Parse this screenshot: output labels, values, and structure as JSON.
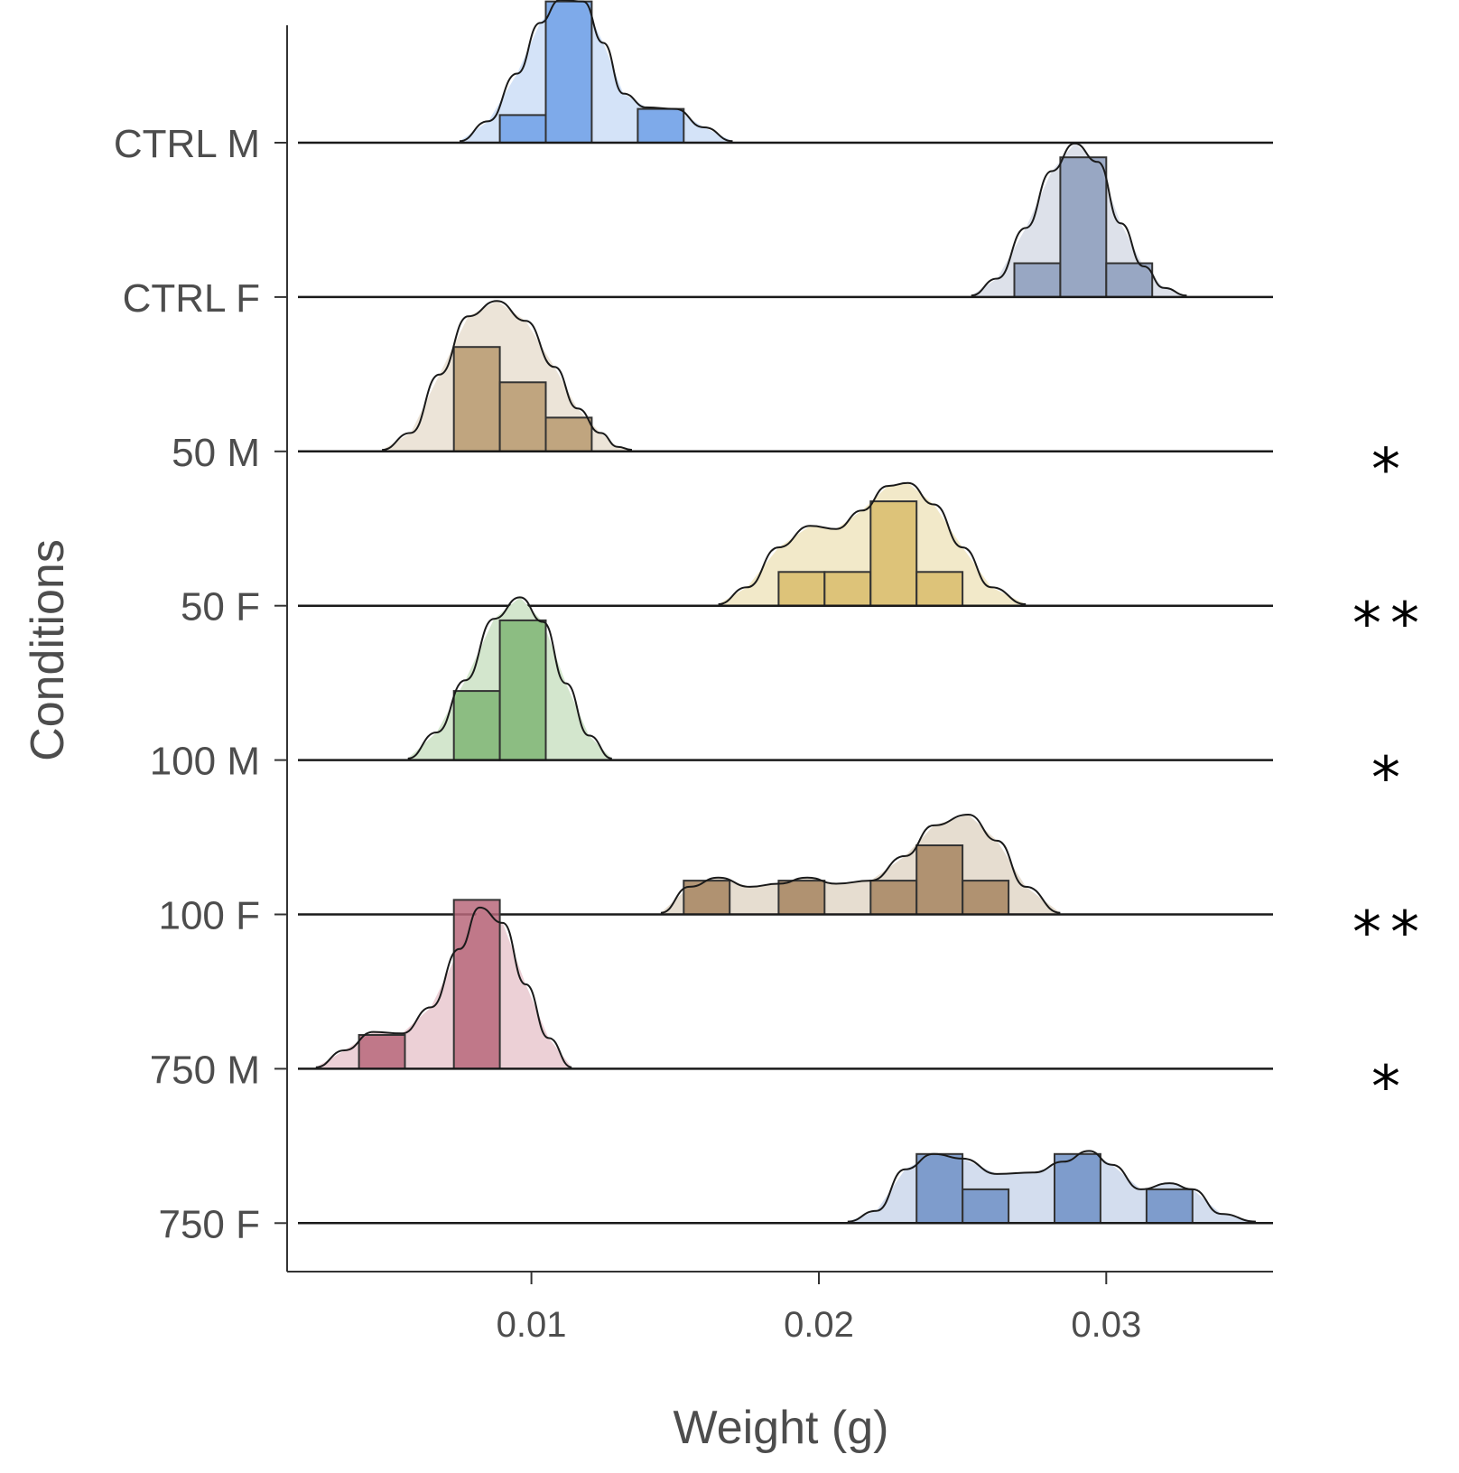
{
  "chart_data": {
    "type": "ridgeline",
    "xlabel": "Weight (g)",
    "ylabel": "Conditions",
    "xlim": [
      0.0015,
      0.0358
    ],
    "x_ticks": [
      {
        "value": 0.01,
        "label": "0.01"
      },
      {
        "value": 0.02,
        "label": "0.02"
      },
      {
        "value": 0.03,
        "label": "0.03"
      }
    ],
    "bin_width": 0.0016,
    "series": [
      {
        "name": "CTRL M",
        "significance": "",
        "fill": "#6fa0e8",
        "density_fill": "#d4e3f8",
        "hist": [
          [
            0.0089,
            0.0105,
            0.18
          ],
          [
            0.0105,
            0.0121,
            0.92
          ],
          [
            0.0121,
            0.0137,
            0
          ],
          [
            0.0137,
            0.0153,
            0.22
          ],
          [
            0.0153,
            0.0169,
            0
          ]
        ],
        "density": [
          [
            0.0075,
            0.01
          ],
          [
            0.0085,
            0.14
          ],
          [
            0.0095,
            0.45
          ],
          [
            0.0103,
            0.78
          ],
          [
            0.011,
            0.93
          ],
          [
            0.0118,
            0.92
          ],
          [
            0.0125,
            0.65
          ],
          [
            0.0132,
            0.32
          ],
          [
            0.014,
            0.23
          ],
          [
            0.015,
            0.22
          ],
          [
            0.016,
            0.1
          ],
          [
            0.017,
            0.01
          ]
        ]
      },
      {
        "name": "CTRL F",
        "significance": "",
        "fill": "#8c9cbc",
        "density_fill": "#dde1ea",
        "hist": [
          [
            0.0268,
            0.0284,
            0.22
          ],
          [
            0.0284,
            0.03,
            0.91
          ],
          [
            0.03,
            0.0316,
            0.22
          ]
        ],
        "density": [
          [
            0.0253,
            0.01
          ],
          [
            0.0262,
            0.12
          ],
          [
            0.0272,
            0.45
          ],
          [
            0.0281,
            0.82
          ],
          [
            0.0289,
            1.0
          ],
          [
            0.0297,
            0.88
          ],
          [
            0.0305,
            0.48
          ],
          [
            0.0313,
            0.2
          ],
          [
            0.032,
            0.06
          ],
          [
            0.0328,
            0.01
          ]
        ]
      },
      {
        "name": "50 M",
        "significance": "*",
        "fill": "#b89a70",
        "density_fill": "#ece4d8",
        "hist": [
          [
            0.0073,
            0.0089,
            0.68
          ],
          [
            0.0089,
            0.0105,
            0.45
          ],
          [
            0.0105,
            0.0121,
            0.22
          ],
          [
            0.0121,
            0.0137,
            0
          ]
        ],
        "density": [
          [
            0.0048,
            0.01
          ],
          [
            0.0058,
            0.12
          ],
          [
            0.0068,
            0.5
          ],
          [
            0.0078,
            0.88
          ],
          [
            0.0088,
            0.98
          ],
          [
            0.0098,
            0.85
          ],
          [
            0.0108,
            0.55
          ],
          [
            0.0116,
            0.28
          ],
          [
            0.0124,
            0.12
          ],
          [
            0.013,
            0.03
          ],
          [
            0.0135,
            0.01
          ]
        ]
      },
      {
        "name": "50 F",
        "significance": "**",
        "fill": "#d9bc6b",
        "density_fill": "#f2e9c9",
        "hist": [
          [
            0.0186,
            0.0202,
            0.22
          ],
          [
            0.0202,
            0.0218,
            0.22
          ],
          [
            0.0218,
            0.0234,
            0.68
          ],
          [
            0.0234,
            0.025,
            0.22
          ]
        ],
        "density": [
          [
            0.0165,
            0.01
          ],
          [
            0.0175,
            0.12
          ],
          [
            0.0186,
            0.38
          ],
          [
            0.0197,
            0.52
          ],
          [
            0.0206,
            0.5
          ],
          [
            0.0215,
            0.62
          ],
          [
            0.0224,
            0.78
          ],
          [
            0.0231,
            0.8
          ],
          [
            0.024,
            0.66
          ],
          [
            0.025,
            0.38
          ],
          [
            0.026,
            0.12
          ],
          [
            0.0272,
            0.01
          ]
        ]
      },
      {
        "name": "100 M",
        "significance": "*",
        "fill": "#7fb574",
        "density_fill": "#d3e6cd",
        "hist": [
          [
            0.0073,
            0.0089,
            0.45
          ],
          [
            0.0089,
            0.0105,
            0.91
          ],
          [
            0.0105,
            0.0121,
            0
          ]
        ],
        "density": [
          [
            0.0057,
            0.01
          ],
          [
            0.0067,
            0.18
          ],
          [
            0.0077,
            0.52
          ],
          [
            0.0087,
            0.92
          ],
          [
            0.0096,
            1.06
          ],
          [
            0.0104,
            0.9
          ],
          [
            0.0112,
            0.5
          ],
          [
            0.012,
            0.16
          ],
          [
            0.0128,
            0.01
          ]
        ]
      },
      {
        "name": "100 F",
        "significance": "**",
        "fill": "#a68560",
        "density_fill": "#e6ddd0",
        "hist": [
          [
            0.0153,
            0.0169,
            0.22
          ],
          [
            0.0169,
            0.0186,
            0
          ],
          [
            0.0186,
            0.0202,
            0.22
          ],
          [
            0.0202,
            0.0218,
            0
          ],
          [
            0.0218,
            0.0234,
            0.22
          ],
          [
            0.0234,
            0.025,
            0.45
          ],
          [
            0.025,
            0.0266,
            0.22
          ]
        ],
        "density": [
          [
            0.0145,
            0.01
          ],
          [
            0.0155,
            0.18
          ],
          [
            0.0165,
            0.24
          ],
          [
            0.0176,
            0.18
          ],
          [
            0.0186,
            0.2
          ],
          [
            0.0196,
            0.24
          ],
          [
            0.0206,
            0.2
          ],
          [
            0.0218,
            0.22
          ],
          [
            0.023,
            0.38
          ],
          [
            0.024,
            0.58
          ],
          [
            0.0252,
            0.65
          ],
          [
            0.0262,
            0.48
          ],
          [
            0.0272,
            0.18
          ],
          [
            0.0284,
            0.01
          ]
        ]
      },
      {
        "name": "750 M",
        "significance": "*",
        "fill": "#b8697b",
        "density_fill": "#ecd0d6",
        "hist": [
          [
            0.004,
            0.0056,
            0.22
          ],
          [
            0.0056,
            0.0073,
            0
          ],
          [
            0.0073,
            0.0089,
            1.1
          ],
          [
            0.0089,
            0.0105,
            0
          ]
        ],
        "density": [
          [
            0.0025,
            0.01
          ],
          [
            0.0035,
            0.12
          ],
          [
            0.0045,
            0.24
          ],
          [
            0.0055,
            0.23
          ],
          [
            0.0065,
            0.4
          ],
          [
            0.0075,
            0.78
          ],
          [
            0.0082,
            1.05
          ],
          [
            0.009,
            0.95
          ],
          [
            0.0098,
            0.55
          ],
          [
            0.0106,
            0.2
          ],
          [
            0.0114,
            0.01
          ]
        ]
      },
      {
        "name": "750 F",
        "significance": "",
        "fill": "#6f90c6",
        "density_fill": "#d3ddee",
        "hist": [
          [
            0.0234,
            0.025,
            0.45
          ],
          [
            0.025,
            0.0266,
            0.22
          ],
          [
            0.0266,
            0.0282,
            0
          ],
          [
            0.0282,
            0.0298,
            0.45
          ],
          [
            0.0298,
            0.0314,
            0
          ],
          [
            0.0314,
            0.033,
            0.22
          ]
        ],
        "density": [
          [
            0.021,
            0.01
          ],
          [
            0.022,
            0.08
          ],
          [
            0.023,
            0.35
          ],
          [
            0.024,
            0.45
          ],
          [
            0.025,
            0.42
          ],
          [
            0.0262,
            0.32
          ],
          [
            0.0275,
            0.33
          ],
          [
            0.0285,
            0.4
          ],
          [
            0.0294,
            0.47
          ],
          [
            0.0302,
            0.38
          ],
          [
            0.0312,
            0.22
          ],
          [
            0.0322,
            0.26
          ],
          [
            0.033,
            0.22
          ],
          [
            0.034,
            0.06
          ],
          [
            0.0352,
            0.01
          ]
        ]
      }
    ]
  }
}
